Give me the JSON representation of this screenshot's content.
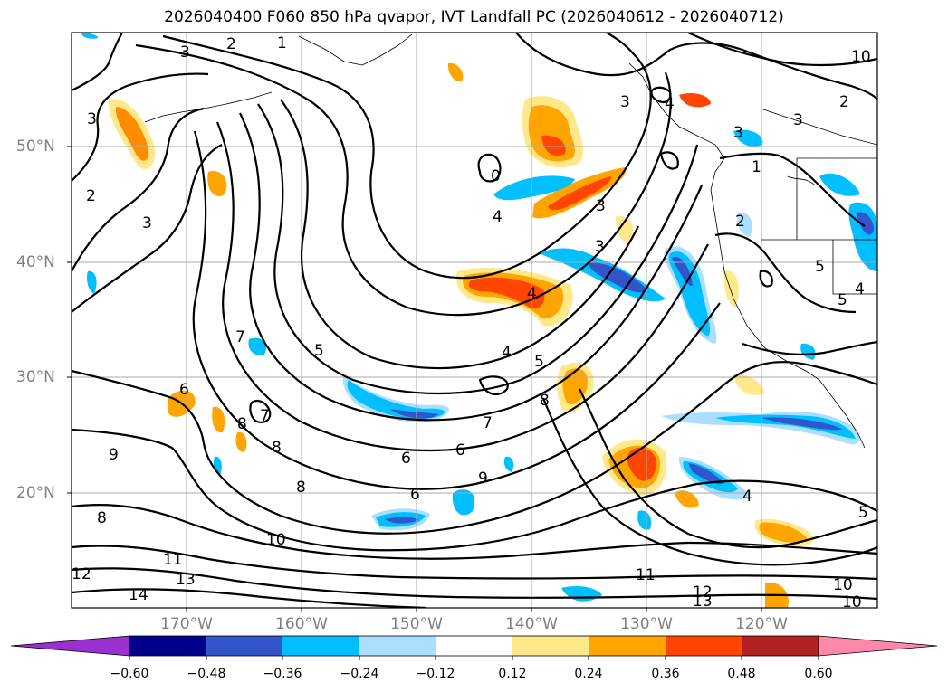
{
  "title": "2026040400 F060 850 hPa qvapor, IVT Landfall PC (2026040612 - 2026040712)",
  "lat_labels": [
    "50°N",
    "40°N",
    "30°N",
    "20°N"
  ],
  "lon_labels": [
    "170°W",
    "160°W",
    "150°W",
    "140°W",
    "130°W",
    "120°W"
  ],
  "colorbar": {
    "colors": [
      "#9b30d0",
      "#00008b",
      "#3355cc",
      "#00bfff",
      "#aadfff",
      "#ffffff",
      "#ffe88a",
      "#ffa500",
      "#ff4500",
      "#b22222",
      "#ff88aa"
    ],
    "ticks": [
      "−0.60",
      "−0.48",
      "−0.36",
      "−0.24",
      "−0.12",
      "0.12",
      "0.24",
      "0.36",
      "0.48",
      "0.60"
    ]
  },
  "contour_labels": [
    "3",
    "2",
    "1",
    "10",
    "2",
    "4",
    "3",
    "3",
    "3",
    "2",
    "0",
    "4",
    "3",
    "3",
    "5",
    "7",
    "5",
    "4",
    "3",
    "6",
    "7",
    "8",
    "8",
    "6",
    "9",
    "7",
    "6",
    "5",
    "8",
    "6",
    "9",
    "8",
    "4",
    "5",
    "8",
    "10",
    "11",
    "13",
    "12",
    "14",
    "11",
    "12",
    "13",
    "10",
    "10",
    "5",
    "2",
    "1",
    "4",
    "3",
    "4"
  ]
}
